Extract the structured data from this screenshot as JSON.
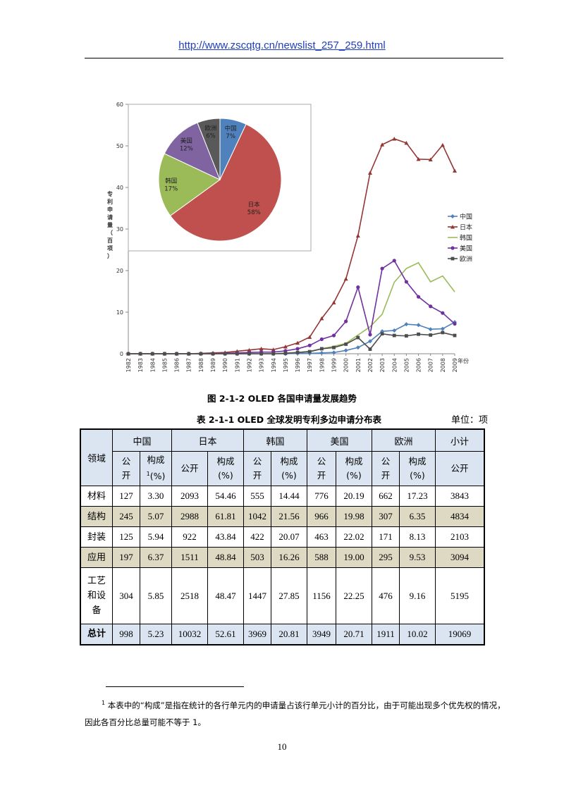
{
  "header": {
    "url": "http://www.zscqtg.cn/newslist_257_259.html"
  },
  "chart_data": [
    {
      "type": "line",
      "ylabel": "专利申请量（百项）",
      "xlabel": "年份",
      "ylim": [
        0,
        60
      ],
      "yticks": [
        "0",
        "10",
        "20",
        "30",
        "40",
        "50",
        "60"
      ],
      "x": [
        "1982",
        "1983",
        "1984",
        "1985",
        "1986",
        "1987",
        "1988",
        "1989",
        "1990",
        "1991",
        "1992",
        "1993",
        "1994",
        "1995",
        "1996",
        "1997",
        "1998",
        "1999",
        "2000",
        "2001",
        "2002",
        "2003",
        "2004",
        "2005",
        "2006",
        "2007",
        "2008",
        "2009"
      ],
      "legend_position": "right",
      "series": [
        {
          "name": "中国",
          "color": "#4f81bd",
          "marker": "diamond",
          "values": [
            0,
            0,
            0,
            0,
            0,
            0,
            0,
            0,
            0,
            0,
            0,
            0,
            0,
            0,
            0.1,
            0.1,
            0.2,
            0.3,
            0.8,
            1.5,
            3,
            5.4,
            5.6,
            7.1,
            6.9,
            5.9,
            6,
            7.6
          ]
        },
        {
          "name": "日本",
          "color": "#943634",
          "marker": "triangle",
          "values": [
            0,
            0,
            0,
            0,
            0,
            0,
            0.1,
            0.2,
            0.3,
            0.6,
            0.9,
            1.2,
            1,
            1.7,
            2.6,
            4,
            8.5,
            12.3,
            18,
            28.4,
            43.5,
            50.3,
            51.7,
            50.7,
            46.8,
            46.7,
            50.2,
            44
          ]
        },
        {
          "name": "韩国",
          "color": "#9bbb59",
          "marker": "none",
          "values": [
            0,
            0,
            0,
            0,
            0,
            0,
            0,
            0,
            0,
            0,
            0,
            0,
            0,
            0.2,
            0.3,
            0.6,
            1.2,
            1.8,
            2.5,
            4.5,
            6.5,
            9.5,
            17.2,
            20.5,
            21.9,
            17.3,
            18.7,
            14.9
          ]
        },
        {
          "name": "美国",
          "color": "#7030a0",
          "marker": "circle",
          "values": [
            0,
            0,
            0,
            0,
            0,
            0,
            0,
            0,
            0.1,
            0.2,
            0.3,
            0.4,
            0.4,
            0.7,
            1.2,
            2,
            3.5,
            4.4,
            7.8,
            16,
            4.6,
            20.5,
            22.4,
            17.3,
            13.7,
            11.4,
            9.8,
            7.2
          ]
        },
        {
          "name": "欧洲",
          "color": "#4d4d4d",
          "marker": "square",
          "values": [
            0,
            0,
            0,
            0,
            0,
            0,
            0,
            0,
            0,
            0,
            0,
            0,
            0,
            0.1,
            0.3,
            0.5,
            1.2,
            1.5,
            2.3,
            3.9,
            1.1,
            4.8,
            4.4,
            4.3,
            4.7,
            4.5,
            5.1,
            4.4
          ]
        }
      ]
    },
    {
      "type": "pie",
      "slices": [
        {
          "label": "中国",
          "value": 7,
          "text": "7%",
          "color": "#4f81bd"
        },
        {
          "label": "日本",
          "value": 58,
          "text": "58%",
          "color": "#c0504d"
        },
        {
          "label": "韩国",
          "value": 17,
          "text": "17%",
          "color": "#9bbb59"
        },
        {
          "label": "美国",
          "value": 12,
          "text": "12%",
          "color": "#8064a2"
        },
        {
          "label": "欧洲",
          "value": 6,
          "text": "6%",
          "color": "#595959"
        }
      ]
    }
  ],
  "figure_caption": "图 2-1-2 OLED 各国申请量发展趋势",
  "table": {
    "title": "表 2-1-1 OLED 全球发明专利多边申请分布表",
    "unit": "单位：项",
    "head_domain": "领域",
    "groups": [
      "中国",
      "日本",
      "韩国",
      "美国",
      "欧洲",
      "小计"
    ],
    "sub_public": "公开",
    "sub_public_split": [
      "公",
      "开"
    ],
    "sub_ratio_a": "构成",
    "sub_ratio_b": "(%)",
    "footnote_mark": "1",
    "rows": [
      {
        "domain": [
          "材料"
        ],
        "cells": [
          "127",
          "3.30",
          "2093",
          "54.46",
          "555",
          "14.44",
          "776",
          "20.19",
          "662",
          "17.23",
          "3843"
        ]
      },
      {
        "domain": [
          "结构"
        ],
        "cells": [
          "245",
          "5.07",
          "2988",
          "61.81",
          "1042",
          "21.56",
          "966",
          "19.98",
          "307",
          "6.35",
          "4834"
        ]
      },
      {
        "domain": [
          "封装"
        ],
        "cells": [
          "125",
          "5.94",
          "922",
          "43.84",
          "422",
          "20.07",
          "463",
          "22.02",
          "171",
          "8.13",
          "2103"
        ]
      },
      {
        "domain": [
          "应用"
        ],
        "cells": [
          "197",
          "6.37",
          "1511",
          "48.84",
          "503",
          "16.26",
          "588",
          "19.00",
          "295",
          "9.53",
          "3094"
        ]
      },
      {
        "domain": [
          "工艺",
          "和设",
          "备"
        ],
        "cells": [
          "304",
          "5.85",
          "2518",
          "48.47",
          "1447",
          "27.85",
          "1156",
          "22.25",
          "476",
          "9.16",
          "5195"
        ]
      },
      {
        "domain": [
          "总计"
        ],
        "cells": [
          "998",
          "5.23",
          "10032",
          "52.61",
          "3969",
          "20.81",
          "3949",
          "20.71",
          "1911",
          "10.02",
          "19069"
        ]
      }
    ]
  },
  "footnote": {
    "mark": "1",
    "text": "本表中的“构成”是指在统计的各行单元内的申请量占该行单元小计的百分比，由于可能出现多个优先权的情况，因此各百分比总量可能不等于 1。"
  },
  "page_number": "10"
}
